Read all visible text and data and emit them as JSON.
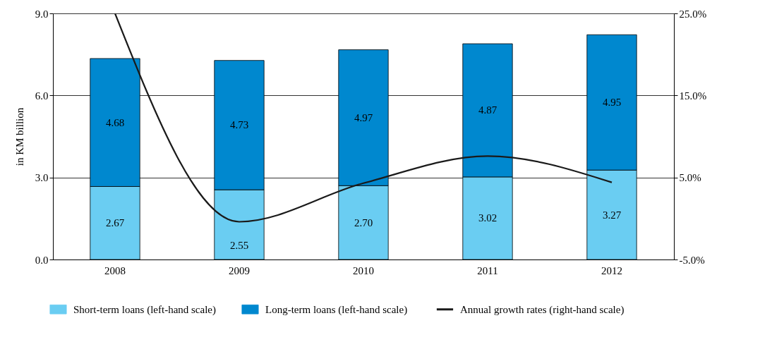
{
  "chart_data": {
    "type": "bar",
    "stacked": true,
    "categories": [
      "2008",
      "2009",
      "2010",
      "2011",
      "2012"
    ],
    "ylabel": "in KM billion",
    "series": [
      {
        "name": "Short-term loans (left-hand scale)",
        "color": "#6acdf2",
        "values": [
          2.67,
          2.55,
          2.7,
          3.02,
          3.27
        ],
        "value_labels": [
          "2.67",
          "2.55",
          "2.70",
          "3.02",
          "3.27"
        ]
      },
      {
        "name": "Long-term loans (left-hand scale)",
        "color": "#0088cf",
        "values": [
          4.68,
          4.73,
          4.97,
          4.87,
          4.95
        ],
        "value_labels": [
          "4.68",
          "4.73",
          "4.97",
          "4.87",
          "4.95"
        ]
      },
      {
        "name": "Annual growth rates (right-hand scale)",
        "type": "line",
        "axis": "y2",
        "color": "#1a1a1a",
        "values": [
          25.0,
          -0.4,
          4.3,
          7.6,
          4.4
        ]
      }
    ],
    "ylim": [
      0,
      9
    ],
    "yticks": [
      {
        "value": 0,
        "label": "0.0"
      },
      {
        "value": 3,
        "label": "3.0"
      },
      {
        "value": 6,
        "label": "6.0"
      },
      {
        "value": 9,
        "label": "9.0"
      }
    ],
    "y2lim": [
      -5,
      25
    ],
    "y2ticks": [
      {
        "value": -5,
        "label": "-5.0%"
      },
      {
        "value": 5,
        "label": "5.0%"
      },
      {
        "value": 15,
        "label": "15.0%"
      },
      {
        "value": 25,
        "label": "25.0%"
      }
    ],
    "grid": "y",
    "legend": "bottom",
    "marker": "none",
    "line_style": "solid"
  }
}
